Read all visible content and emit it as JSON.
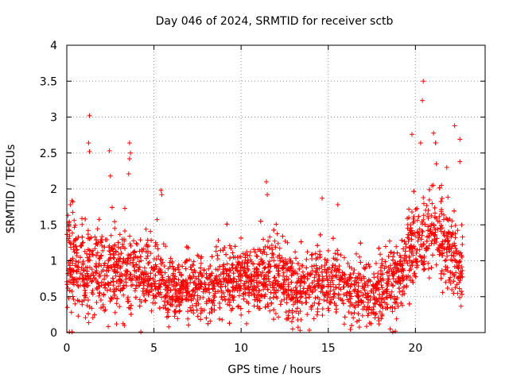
{
  "chart_data": {
    "type": "scatter",
    "title": "Day 046 of 2024, SRMTID for receiver sctb",
    "xlabel": "GPS time / hours",
    "ylabel": "SRMTID / TECUs",
    "xlim": [
      0,
      24
    ],
    "ylim": [
      0,
      4
    ],
    "x_ticks": [
      0,
      5,
      10,
      15,
      20
    ],
    "x_tick_labels": [
      "0",
      "5",
      "10",
      "15",
      "20"
    ],
    "y_ticks": [
      0,
      0.5,
      1,
      1.5,
      2,
      2.5,
      3,
      3.5,
      4
    ],
    "y_tick_labels": [
      "0",
      "0.5",
      "1",
      "1.5",
      "2",
      "2.5",
      "3",
      "3.5",
      "4"
    ],
    "grid": true,
    "marker": "+",
    "series_color": "#ff0000",
    "trend": [
      [
        0.0,
        1.05
      ],
      [
        1.0,
        0.85
      ],
      [
        2.0,
        0.8
      ],
      [
        3.0,
        0.9
      ],
      [
        4.0,
        0.85
      ],
      [
        5.0,
        0.8
      ],
      [
        6.0,
        0.6
      ],
      [
        7.0,
        0.6
      ],
      [
        8.0,
        0.6
      ],
      [
        9.0,
        0.7
      ],
      [
        10.0,
        0.75
      ],
      [
        11.0,
        0.7
      ],
      [
        12.0,
        0.8
      ],
      [
        13.0,
        0.65
      ],
      [
        14.0,
        0.7
      ],
      [
        15.0,
        0.75
      ],
      [
        16.0,
        0.6
      ],
      [
        17.0,
        0.55
      ],
      [
        18.0,
        0.6
      ],
      [
        19.0,
        0.75
      ],
      [
        20.0,
        1.3
      ],
      [
        21.0,
        1.45
      ],
      [
        22.0,
        1.15
      ],
      [
        22.7,
        0.8
      ]
    ],
    "spread": [
      [
        0.0,
        0.45
      ],
      [
        2.0,
        0.4
      ],
      [
        4.0,
        0.35
      ],
      [
        6.0,
        0.25
      ],
      [
        9.0,
        0.3
      ],
      [
        12.0,
        0.35
      ],
      [
        15.0,
        0.3
      ],
      [
        18.0,
        0.3
      ],
      [
        19.5,
        0.35
      ],
      [
        21.0,
        0.45
      ],
      [
        22.7,
        0.35
      ]
    ],
    "n_points": 3300,
    "outliers": [
      [
        1.3,
        3.02
      ],
      [
        1.25,
        2.64
      ],
      [
        1.3,
        2.52
      ],
      [
        2.45,
        2.53
      ],
      [
        2.5,
        2.18
      ],
      [
        3.6,
        2.64
      ],
      [
        3.65,
        2.5
      ],
      [
        3.6,
        2.42
      ],
      [
        3.55,
        2.21
      ],
      [
        5.4,
        1.98
      ],
      [
        5.45,
        1.92
      ],
      [
        11.45,
        2.1
      ],
      [
        11.5,
        1.92
      ],
      [
        14.65,
        1.87
      ],
      [
        15.55,
        1.78
      ],
      [
        19.8,
        2.76
      ],
      [
        20.45,
        3.5
      ],
      [
        20.4,
        3.23
      ],
      [
        20.3,
        2.64
      ],
      [
        21.2,
        2.35
      ],
      [
        22.25,
        2.88
      ],
      [
        22.55,
        2.69
      ],
      [
        22.55,
        2.38
      ],
      [
        0.2,
        1.78
      ],
      [
        0.3,
        0.01
      ],
      [
        0.15,
        0.01
      ],
      [
        4.25,
        0.01
      ],
      [
        3.3,
        0.1
      ],
      [
        18.7,
        0.01
      ],
      [
        18.85,
        0.02
      ],
      [
        18.55,
        0.05
      ],
      [
        5.85,
        0.08
      ],
      [
        2.85,
        0.12
      ],
      [
        21.8,
        2.3
      ],
      [
        21.5,
        2.05
      ]
    ]
  }
}
